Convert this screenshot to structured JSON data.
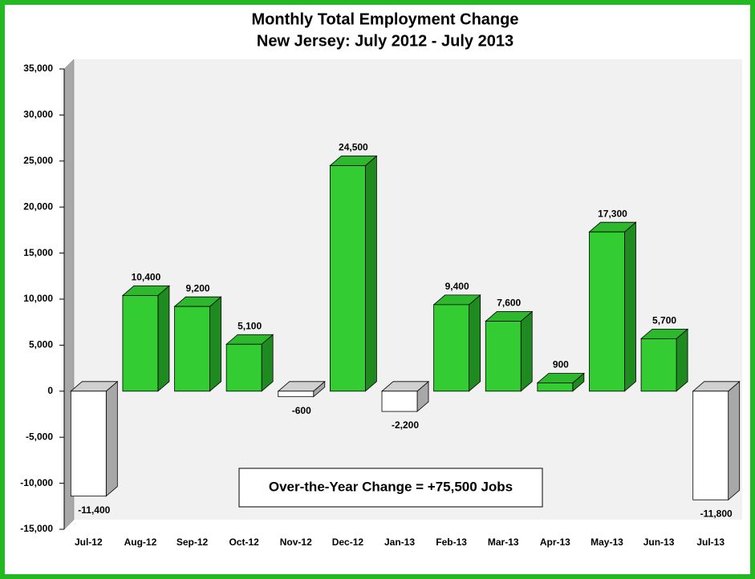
{
  "chart_data": {
    "type": "bar3d",
    "title": "Monthly Total Employment Change",
    "subtitle": "New Jersey: July 2012 - July 2013",
    "annotation": "Over-the-Year Change = +75,500 Jobs",
    "categories": [
      "Jul-12",
      "Aug-12",
      "Sep-12",
      "Oct-12",
      "Nov-12",
      "Dec-12",
      "Jan-13",
      "Feb-13",
      "Mar-13",
      "Apr-13",
      "May-13",
      "Jun-13",
      "Jul-13"
    ],
    "values": [
      -11400,
      10400,
      9200,
      5100,
      -600,
      24500,
      -2200,
      9400,
      7600,
      900,
      17300,
      5700,
      -11800
    ],
    "value_labels": [
      "-11,400",
      "10,400",
      "9,200",
      "5,100",
      "-600",
      "24,500",
      "-2,200",
      "9,400",
      "7,600",
      "900",
      "17,300",
      "5,700",
      "-11,800"
    ],
    "color": "#33cc33",
    "negative_color": "#ffffff",
    "ylim": [
      -15000,
      35000
    ],
    "yticks": [
      {
        "value": -15000,
        "label": "-15,000"
      },
      {
        "value": -10000,
        "label": "-10,000"
      },
      {
        "value": -5000,
        "label": "-5,000"
      },
      0,
      {
        "value": 5000,
        "label": "5,000"
      },
      {
        "value": 10000,
        "label": "10,000"
      },
      {
        "value": 15000,
        "label": "15,000"
      },
      {
        "value": 20000,
        "label": "20,000"
      },
      {
        "value": 25000,
        "label": "25,000"
      },
      {
        "value": 30000,
        "label": "30,000"
      },
      {
        "value": 35000,
        "label": "35,000"
      }
    ]
  }
}
